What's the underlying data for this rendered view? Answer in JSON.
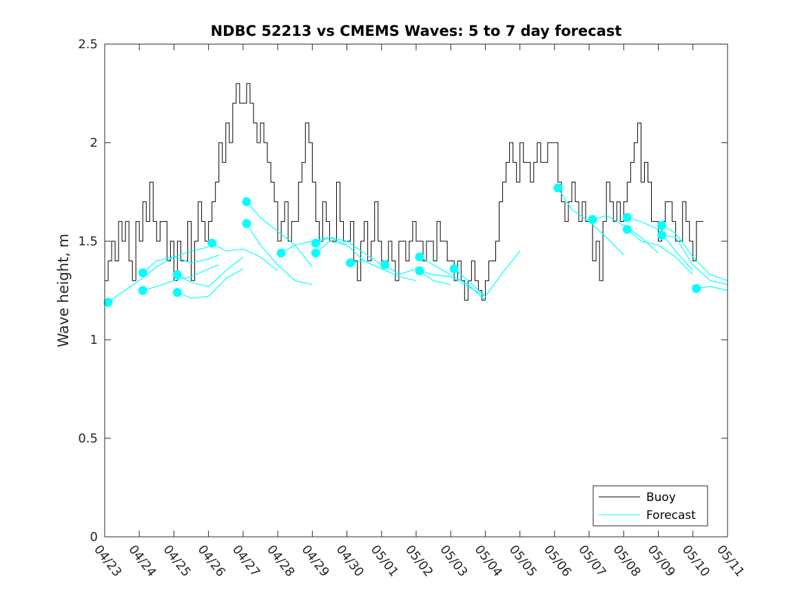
{
  "chart_data": {
    "type": "line",
    "title": "NDBC 52213 vs CMEMS Waves: 5 to 7 day forecast",
    "xlabel": "",
    "ylabel": "Wave height, m",
    "xlim": [
      0,
      18
    ],
    "ylim": [
      0,
      2.5
    ],
    "x_tick_values": [
      0,
      1,
      2,
      3,
      4,
      5,
      6,
      7,
      8,
      9,
      10,
      11,
      12,
      13,
      14,
      15,
      16,
      17,
      18
    ],
    "x_tick_labels": [
      "04/23",
      "04/24",
      "04/25",
      "04/26",
      "04/27",
      "04/28",
      "04/29",
      "04/30",
      "05/01",
      "05/02",
      "05/03",
      "05/04",
      "05/05",
      "05/06",
      "05/07",
      "05/08",
      "05/09",
      "05/10",
      "05/11"
    ],
    "y_ticks": [
      0,
      0.5,
      1,
      1.5,
      2,
      2.5
    ],
    "y_tick_labels": [
      "0",
      "0.5",
      "1",
      "1.5",
      "2",
      "2.5"
    ],
    "grid": false,
    "legend": {
      "position": "bottom-right",
      "entries": [
        "Buoy",
        "Forecast"
      ]
    },
    "colors": {
      "buoy": "#000000",
      "forecast": "#00ffff",
      "axes": "#262626"
    },
    "series": [
      {
        "name": "Buoy",
        "x": [
          0.0,
          0.1,
          0.2,
          0.3,
          0.4,
          0.5,
          0.6,
          0.7,
          0.8,
          0.9,
          1.0,
          1.1,
          1.2,
          1.3,
          1.4,
          1.5,
          1.6,
          1.7,
          1.8,
          1.9,
          2.0,
          2.1,
          2.2,
          2.3,
          2.4,
          2.5,
          2.6,
          2.7,
          2.8,
          2.9,
          3.0,
          3.1,
          3.2,
          3.3,
          3.4,
          3.5,
          3.6,
          3.7,
          3.8,
          3.9,
          4.0,
          4.1,
          4.2,
          4.3,
          4.4,
          4.5,
          4.6,
          4.7,
          4.8,
          4.9,
          5.0,
          5.1,
          5.2,
          5.3,
          5.4,
          5.5,
          5.6,
          5.7,
          5.8,
          5.9,
          6.0,
          6.1,
          6.2,
          6.3,
          6.4,
          6.5,
          6.6,
          6.7,
          6.8,
          6.9,
          7.0,
          7.1,
          7.2,
          7.3,
          7.4,
          7.5,
          7.6,
          7.7,
          7.8,
          7.9,
          8.0,
          8.1,
          8.2,
          8.3,
          8.4,
          8.5,
          8.6,
          8.7,
          8.8,
          8.9,
          9.0,
          9.1,
          9.2,
          9.3,
          9.4,
          9.5,
          9.6,
          9.7,
          9.8,
          9.9,
          10.0,
          10.1,
          10.2,
          10.3,
          10.4,
          10.5,
          10.6,
          10.7,
          10.8,
          10.9,
          11.0,
          11.1,
          11.2,
          11.3,
          11.4,
          11.5,
          11.6,
          11.7,
          11.8,
          11.9,
          12.0,
          12.1,
          12.2,
          12.3,
          12.4,
          12.5,
          12.6,
          12.7,
          12.8,
          12.9,
          13.0,
          13.1,
          13.2,
          13.3,
          13.4,
          13.5,
          13.6,
          13.7,
          13.8,
          13.9,
          14.0,
          14.1,
          14.2,
          14.3,
          14.4,
          14.5,
          14.6,
          14.7,
          14.8,
          14.9,
          15.0,
          15.1,
          15.2,
          15.3,
          15.4,
          15.5,
          15.6,
          15.7,
          15.8,
          15.9,
          16.0,
          16.1,
          16.2,
          16.3,
          16.4,
          16.5,
          16.6,
          16.7,
          16.8,
          16.9,
          17.0,
          17.1,
          17.2,
          17.3
        ],
        "y": [
          1.3,
          1.4,
          1.5,
          1.4,
          1.6,
          1.5,
          1.6,
          1.4,
          1.3,
          1.6,
          1.5,
          1.7,
          1.6,
          1.8,
          1.6,
          1.5,
          1.6,
          1.6,
          1.4,
          1.5,
          1.3,
          1.5,
          1.4,
          1.4,
          1.6,
          1.3,
          1.5,
          1.7,
          1.6,
          1.5,
          1.6,
          1.7,
          1.8,
          2.0,
          1.9,
          2.1,
          2.0,
          2.2,
          2.3,
          2.2,
          2.2,
          2.3,
          2.2,
          2.1,
          2.0,
          2.1,
          2.0,
          1.9,
          1.8,
          1.7,
          1.5,
          1.6,
          1.7,
          1.5,
          1.6,
          1.6,
          1.8,
          1.9,
          2.1,
          2.0,
          1.8,
          1.6,
          1.5,
          1.7,
          1.6,
          1.5,
          1.5,
          1.8,
          1.6,
          1.5,
          1.5,
          1.6,
          1.4,
          1.3,
          1.5,
          1.6,
          1.4,
          1.5,
          1.7,
          1.5,
          1.4,
          1.4,
          1.5,
          1.4,
          1.3,
          1.5,
          1.5,
          1.4,
          1.5,
          1.6,
          1.5,
          1.5,
          1.4,
          1.5,
          1.5,
          1.4,
          1.6,
          1.5,
          1.5,
          1.4,
          1.4,
          1.3,
          1.4,
          1.3,
          1.2,
          1.3,
          1.4,
          1.3,
          1.25,
          1.2,
          1.3,
          1.4,
          1.4,
          1.5,
          1.7,
          1.8,
          1.9,
          2.0,
          1.9,
          1.8,
          2.0,
          1.9,
          1.9,
          1.8,
          1.9,
          2.0,
          1.9,
          1.9,
          2.0,
          2.0,
          2.0,
          1.8,
          1.7,
          1.6,
          1.7,
          1.8,
          1.7,
          1.6,
          1.7,
          1.6,
          1.6,
          1.4,
          1.5,
          1.3,
          1.6,
          1.8,
          1.7,
          1.6,
          1.7,
          1.6,
          1.7,
          1.8,
          1.9,
          2.0,
          2.1,
          1.8,
          1.9,
          1.8,
          1.6,
          1.6,
          1.5,
          1.6,
          1.7,
          1.7,
          1.6,
          1.5,
          1.5,
          1.7,
          1.6,
          1.5,
          1.4,
          1.6,
          1.6,
          1.6
        ]
      },
      {
        "name": "Forecast",
        "segments": [
          {
            "x": [
              0.1,
              0.5,
              1.0,
              1.5,
              2.0,
              2.5,
              3.0
            ],
            "y": [
              1.19,
              1.24,
              1.3,
              1.37,
              1.42,
              1.45,
              1.47
            ]
          },
          {
            "x": [
              1.1,
              1.5,
              2.0,
              2.5,
              3.0,
              3.3
            ],
            "y": [
              1.34,
              1.4,
              1.42,
              1.39,
              1.41,
              1.43
            ]
          },
          {
            "x": [
              1.1,
              1.5,
              2.0,
              2.5,
              3.0,
              3.3
            ],
            "y": [
              1.25,
              1.27,
              1.3,
              1.32,
              1.36,
              1.38
            ]
          },
          {
            "x": [
              2.1,
              2.5,
              3.0,
              3.5,
              4.0
            ],
            "y": [
              1.33,
              1.29,
              1.27,
              1.35,
              1.42
            ]
          },
          {
            "x": [
              2.1,
              2.5,
              3.0,
              3.5,
              4.0
            ],
            "y": [
              1.24,
              1.21,
              1.22,
              1.31,
              1.36
            ]
          },
          {
            "x": [
              3.1,
              3.5,
              4.0,
              4.5,
              5.0
            ],
            "y": [
              1.49,
              1.45,
              1.46,
              1.42,
              1.35
            ]
          },
          {
            "x": [
              4.1,
              4.5,
              5.0,
              5.5,
              6.0
            ],
            "y": [
              1.7,
              1.62,
              1.55,
              1.48,
              1.37
            ]
          },
          {
            "x": [
              4.1,
              4.5,
              5.0,
              5.5,
              6.0
            ],
            "y": [
              1.59,
              1.48,
              1.38,
              1.3,
              1.28
            ]
          },
          {
            "x": [
              5.1,
              5.5,
              6.0,
              6.5,
              7.0
            ],
            "y": [
              1.44,
              1.48,
              1.5,
              1.52,
              1.48
            ]
          },
          {
            "x": [
              6.1,
              6.5,
              7.0,
              7.5,
              8.0
            ],
            "y": [
              1.49,
              1.52,
              1.5,
              1.44,
              1.38
            ]
          },
          {
            "x": [
              6.1,
              6.5,
              7.0,
              7.5,
              8.0
            ],
            "y": [
              1.44,
              1.5,
              1.48,
              1.4,
              1.36
            ]
          },
          {
            "x": [
              7.1,
              7.5,
              8.0,
              8.5,
              9.0
            ],
            "y": [
              1.39,
              1.4,
              1.36,
              1.32,
              1.3
            ]
          },
          {
            "x": [
              8.1,
              8.5,
              9.0,
              9.5,
              10.0
            ],
            "y": [
              1.38,
              1.33,
              1.36,
              1.3,
              1.28
            ]
          },
          {
            "x": [
              9.1,
              9.5,
              10.0,
              10.5,
              11.0
            ],
            "y": [
              1.42,
              1.38,
              1.33,
              1.28,
              1.2
            ]
          },
          {
            "x": [
              9.1,
              9.5,
              10.0,
              10.5,
              11.0
            ],
            "y": [
              1.35,
              1.33,
              1.32,
              1.27,
              1.22
            ]
          },
          {
            "x": [
              10.1,
              10.5,
              11.0,
              11.5,
              12.0
            ],
            "y": [
              1.36,
              1.3,
              1.22,
              1.34,
              1.45
            ]
          },
          {
            "x": [
              13.1,
              13.5,
              14.0,
              14.5,
              15.0
            ],
            "y": [
              1.77,
              1.66,
              1.6,
              1.52,
              1.43
            ]
          },
          {
            "x": [
              14.1,
              14.5,
              15.0,
              15.5,
              16.0
            ],
            "y": [
              1.61,
              1.63,
              1.58,
              1.52,
              1.44
            ]
          },
          {
            "x": [
              15.1,
              15.5,
              16.0,
              16.5,
              17.0
            ],
            "y": [
              1.62,
              1.6,
              1.56,
              1.45,
              1.35
            ]
          },
          {
            "x": [
              15.1,
              15.5,
              16.0,
              16.5,
              17.0
            ],
            "y": [
              1.56,
              1.5,
              1.48,
              1.42,
              1.33
            ]
          },
          {
            "x": [
              16.1,
              16.5,
              17.0,
              17.5,
              18.0
            ],
            "y": [
              1.58,
              1.54,
              1.42,
              1.33,
              1.3
            ]
          },
          {
            "x": [
              16.1,
              16.5,
              17.0,
              17.5,
              18.0
            ],
            "y": [
              1.53,
              1.52,
              1.38,
              1.3,
              1.28
            ]
          },
          {
            "x": [
              17.1,
              17.5,
              18.0
            ],
            "y": [
              1.26,
              1.27,
              1.25
            ]
          }
        ],
        "markers": {
          "x": [
            0.1,
            1.1,
            1.1,
            2.1,
            2.1,
            3.1,
            4.1,
            4.1,
            5.1,
            6.1,
            6.1,
            7.1,
            8.1,
            9.1,
            9.1,
            10.1,
            13.1,
            14.1,
            15.1,
            15.1,
            16.1,
            16.1,
            17.1
          ],
          "y": [
            1.19,
            1.34,
            1.25,
            1.33,
            1.24,
            1.49,
            1.7,
            1.59,
            1.44,
            1.49,
            1.44,
            1.39,
            1.38,
            1.42,
            1.35,
            1.36,
            1.77,
            1.61,
            1.62,
            1.56,
            1.58,
            1.53,
            1.26
          ]
        }
      }
    ]
  }
}
